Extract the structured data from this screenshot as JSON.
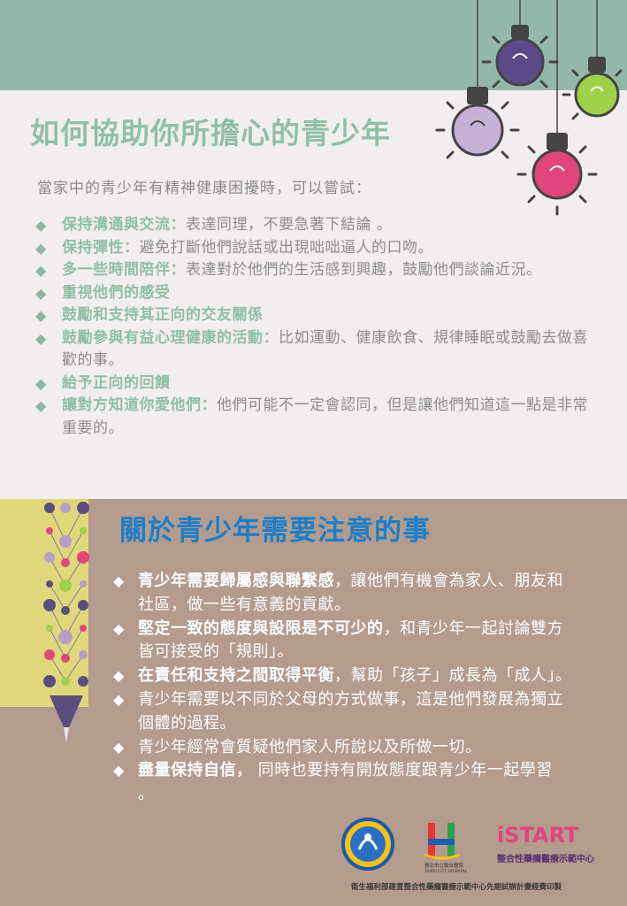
{
  "title": "如何協助你所擔心的青少年",
  "intro": "當家中的青少年有精神健康困擾時，可以嘗試：",
  "tips": [
    {
      "bold": "保持溝通與交流：",
      "text": "表達同理，不要急著下結論 。"
    },
    {
      "bold": "保持彈性：",
      "text": "避免打斷他們說話或出現咄咄逼人的口吻。"
    },
    {
      "bold": "多一些時間陪伴：",
      "text": "表達對於他們的生活感到興趣，鼓勵他們談論近況。"
    },
    {
      "bold": "重視他們的感受",
      "text": ""
    },
    {
      "bold": "鼓勵和支持其正向的交友關係",
      "text": ""
    },
    {
      "bold": "鼓勵參與有益心理健康的活動：",
      "text": "比如運動、健康飲食、規律睡眠或鼓勵去做喜歡的事。"
    },
    {
      "bold": "給予正向的回饋",
      "text": ""
    },
    {
      "bold": "讓對方知道你愛他們：",
      "text": "他們可能不一定會認同，但是讓他們知道這一點是非常重要的。"
    }
  ],
  "section2_title": "關於青少年需要注意的事",
  "notes": [
    {
      "bold": "青少年需要歸屬感與聯繫感",
      "text": "，讓他們有機會為家人、朋友和社區，做一些有意義的貢獻。"
    },
    {
      "bold": "堅定一致的態度與設限是不可少的",
      "text": "，和青少年一起討論雙方皆可接受的「規則」。"
    },
    {
      "bold": "在責任和支持之間取得平衡",
      "text": "，幫助「孩子」成長為「成人」。"
    },
    {
      "bold": "",
      "text": "青少年需要以不同於父母的方式做事，這是他們發展為獨立個體的過程。"
    },
    {
      "bold": "",
      "text": "青少年經常會質疑他們家人所說以及所做一切。"
    },
    {
      "bold": "盡量保持自信，",
      "text": " 同時也要持有開放態度跟青少年一起學習 。"
    }
  ],
  "logos": {
    "hospital_name": "臺北市立聯合醫院",
    "hospital_en": "TAIPEI CITY HOSPITAL",
    "istart_name": "整合性藥癮醫療示範中心",
    "istart_word": "iSTART"
  },
  "footer": "衛生福利部建置整合性藥癮醫療示範中心先期試辦計畫經費印製",
  "colors": {
    "band": "#93b8ab",
    "lower_bg": "#b39b8d",
    "title1": "#8fc0a8",
    "title2": "#1c7ec8"
  }
}
